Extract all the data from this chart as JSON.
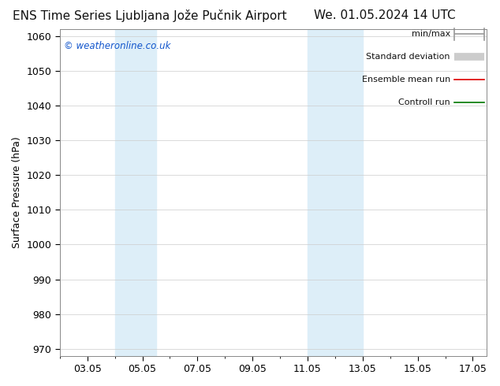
{
  "title_left": "ENS Time Series Ljubljana Jože Pučnik Airport",
  "title_right": "We. 01.05.2024 14 UTC",
  "ylabel": "Surface Pressure (hPa)",
  "ylim": [
    968,
    1062
  ],
  "yticks": [
    970,
    980,
    990,
    1000,
    1010,
    1020,
    1030,
    1040,
    1050,
    1060
  ],
  "xlim_start": 2.0,
  "xlim_end": 17.5,
  "xtick_labels": [
    "03.05",
    "05.05",
    "07.05",
    "09.05",
    "11.05",
    "13.05",
    "15.05",
    "17.05"
  ],
  "xtick_positions": [
    3,
    5,
    7,
    9,
    11,
    13,
    15,
    17
  ],
  "shaded_bands": [
    {
      "x_start": 4.0,
      "x_end": 5.5
    },
    {
      "x_start": 11.0,
      "x_end": 13.0
    }
  ],
  "shaded_color": "#ddeef8",
  "watermark_text": "© weatheronline.co.uk",
  "watermark_color": "#1155cc",
  "legend_items": [
    {
      "label": "min/max",
      "color": "#999999",
      "lw": 1.2,
      "style": "minmax"
    },
    {
      "label": "Standard deviation",
      "color": "#cccccc",
      "lw": 5,
      "style": "thick"
    },
    {
      "label": "Ensemble mean run",
      "color": "#dd0000",
      "lw": 1.2,
      "style": "solid"
    },
    {
      "label": "Controll run",
      "color": "#007700",
      "lw": 1.2,
      "style": "solid"
    }
  ],
  "bg_color": "#ffffff",
  "grid_color": "#cccccc",
  "title_fontsize": 11,
  "tick_fontsize": 9,
  "ylabel_fontsize": 9,
  "legend_fontsize": 8
}
